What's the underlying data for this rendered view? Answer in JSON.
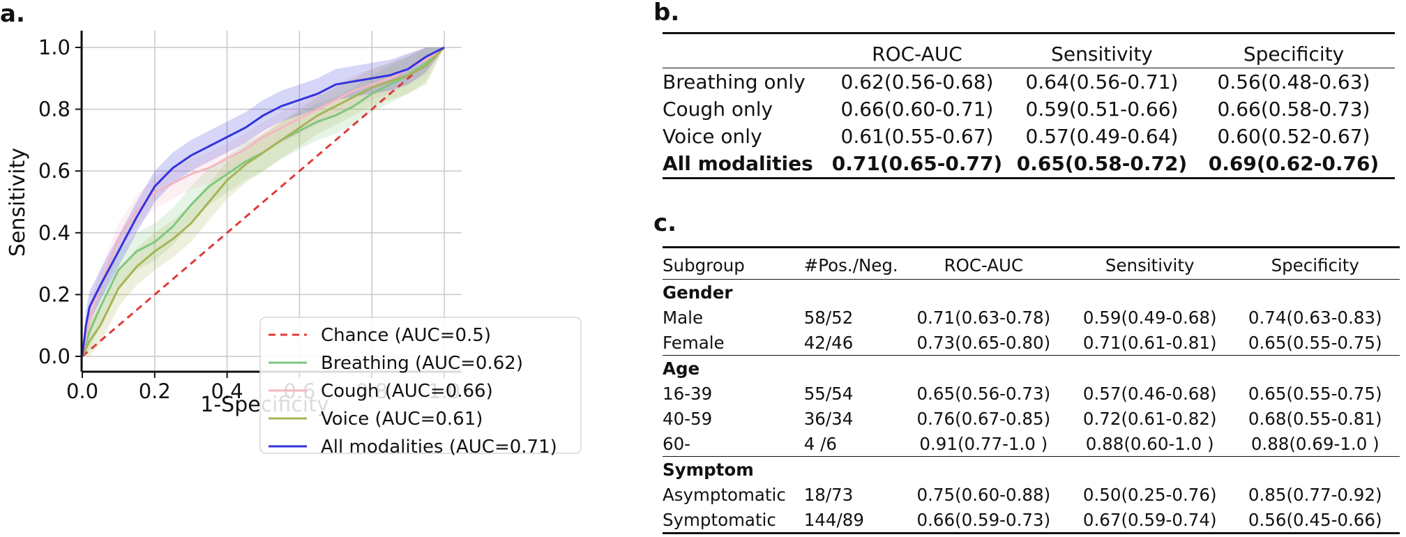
{
  "panels": {
    "a": "a.",
    "b": "b.",
    "c": "c."
  },
  "chart_data": {
    "type": "line",
    "xlabel": "1-Specificity",
    "ylabel": "Sensitivity",
    "xlim": [
      -0.05,
      1.05
    ],
    "ylim": [
      -0.05,
      1.05
    ],
    "xticks": [
      "0.0",
      "0.2",
      "0.4",
      "0.6",
      "0.8",
      "1.0"
    ],
    "yticks": [
      "0.0",
      "0.2",
      "0.4",
      "0.6",
      "0.8",
      "1.0"
    ],
    "grid": true,
    "legend_position": "lower-right",
    "series": [
      {
        "name": "Chance (AUC=0.5)",
        "color": "#e03a3a",
        "dashed": true,
        "x": [
          0,
          1
        ],
        "y": [
          0,
          1
        ],
        "band": null
      },
      {
        "name": "Breathing (AUC=0.62)",
        "color": "#7fc77f",
        "dashed": false,
        "x": [
          0,
          0.02,
          0.05,
          0.1,
          0.15,
          0.2,
          0.25,
          0.3,
          0.35,
          0.4,
          0.45,
          0.5,
          0.55,
          0.6,
          0.65,
          0.7,
          0.75,
          0.8,
          0.85,
          0.9,
          0.95,
          1.0
        ],
        "y": [
          0,
          0.08,
          0.16,
          0.28,
          0.34,
          0.37,
          0.42,
          0.49,
          0.55,
          0.59,
          0.63,
          0.66,
          0.7,
          0.73,
          0.76,
          0.78,
          0.81,
          0.85,
          0.88,
          0.91,
          0.95,
          1.0
        ],
        "band": 0.06
      },
      {
        "name": "Cough (AUC=0.66)",
        "color": "#f4b6c2",
        "dashed": false,
        "x": [
          0,
          0.02,
          0.05,
          0.1,
          0.15,
          0.2,
          0.25,
          0.3,
          0.35,
          0.4,
          0.45,
          0.5,
          0.55,
          0.6,
          0.65,
          0.7,
          0.75,
          0.8,
          0.85,
          0.9,
          0.95,
          1.0
        ],
        "y": [
          0,
          0.12,
          0.23,
          0.38,
          0.47,
          0.53,
          0.56,
          0.59,
          0.61,
          0.64,
          0.67,
          0.71,
          0.74,
          0.77,
          0.8,
          0.83,
          0.86,
          0.88,
          0.9,
          0.93,
          0.96,
          1.0
        ],
        "band": 0.05
      },
      {
        "name": "Voice (AUC=0.61)",
        "color": "#a8b356",
        "dashed": false,
        "x": [
          0,
          0.02,
          0.05,
          0.1,
          0.15,
          0.2,
          0.25,
          0.3,
          0.35,
          0.4,
          0.45,
          0.5,
          0.55,
          0.6,
          0.65,
          0.7,
          0.75,
          0.8,
          0.85,
          0.9,
          0.95,
          1.0
        ],
        "y": [
          0,
          0.05,
          0.1,
          0.22,
          0.29,
          0.34,
          0.38,
          0.43,
          0.5,
          0.57,
          0.62,
          0.66,
          0.7,
          0.74,
          0.78,
          0.81,
          0.84,
          0.87,
          0.89,
          0.91,
          0.94,
          1.0
        ],
        "band": 0.06
      },
      {
        "name": "All modalities (AUC=0.71)",
        "color": "#3333dd",
        "dashed": false,
        "x": [
          0,
          0.01,
          0.02,
          0.05,
          0.1,
          0.15,
          0.2,
          0.25,
          0.3,
          0.35,
          0.4,
          0.45,
          0.5,
          0.55,
          0.6,
          0.65,
          0.7,
          0.75,
          0.8,
          0.85,
          0.9,
          0.95,
          1.0
        ],
        "y": [
          0,
          0.1,
          0.16,
          0.23,
          0.34,
          0.45,
          0.55,
          0.61,
          0.65,
          0.68,
          0.71,
          0.74,
          0.78,
          0.81,
          0.83,
          0.85,
          0.88,
          0.89,
          0.9,
          0.91,
          0.93,
          0.97,
          1.0
        ],
        "band": 0.05
      }
    ]
  },
  "table_b": {
    "headers": [
      "",
      "ROC-AUC",
      "Sensitivity",
      "Specificity"
    ],
    "rows": [
      {
        "label": "Breathing only",
        "cells": [
          "0.62(0.56-0.68)",
          "0.64(0.56-0.71)",
          "0.56(0.48-0.63)"
        ],
        "bold": false
      },
      {
        "label": "Cough only",
        "cells": [
          "0.66(0.60-0.71)",
          "0.59(0.51-0.66)",
          "0.66(0.58-0.73)"
        ],
        "bold": false
      },
      {
        "label": "Voice only",
        "cells": [
          "0.61(0.55-0.67)",
          "0.57(0.49-0.64)",
          "0.60(0.52-0.67)"
        ],
        "bold": false
      },
      {
        "label": "All modalities",
        "cells": [
          "0.71(0.65-0.77)",
          "0.65(0.58-0.72)",
          "0.69(0.62-0.76)"
        ],
        "bold": true
      }
    ]
  },
  "table_c": {
    "headers": [
      "Subgroup",
      "#Pos./Neg.",
      "ROC-AUC",
      "Sensitivity",
      "Specificity"
    ],
    "groups": [
      {
        "name": "Gender",
        "rows": [
          [
            "Male",
            "58/52",
            "0.71(0.63-0.78)",
            "0.59(0.49-0.68)",
            "0.74(0.63-0.83)"
          ],
          [
            "Female",
            "42/46",
            "0.73(0.65-0.80)",
            "0.71(0.61-0.81)",
            "0.65(0.55-0.75)"
          ]
        ]
      },
      {
        "name": "Age",
        "rows": [
          [
            "16-39",
            "55/54",
            "0.65(0.56-0.73)",
            "0.57(0.46-0.68)",
            "0.65(0.55-0.75)"
          ],
          [
            "40-59",
            "36/34",
            "0.76(0.67-0.85)",
            "0.72(0.61-0.82)",
            "0.68(0.55-0.81)"
          ],
          [
            "60-",
            "4 /6",
            "0.91(0.77-1.0 )",
            "0.88(0.60-1.0 )",
            "0.88(0.69-1.0 )"
          ]
        ]
      },
      {
        "name": "Symptom",
        "rows": [
          [
            "Asymptomatic",
            "18/73",
            "0.75(0.60-0.88)",
            "0.50(0.25-0.76)",
            "0.85(0.77-0.92)"
          ],
          [
            "Symptomatic",
            "144/89",
            "0.66(0.59-0.73)",
            "0.67(0.59-0.74)",
            "0.56(0.45-0.66)"
          ]
        ]
      }
    ]
  }
}
